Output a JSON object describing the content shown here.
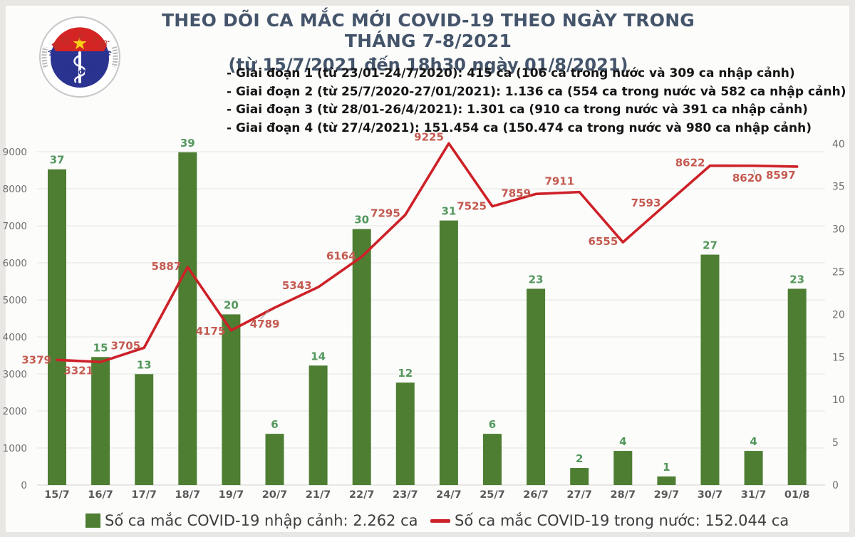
{
  "header": {
    "title_line1": "THEO DÕI CA MẮC MỚI COVID-19 THEO NGÀY TRONG THÁNG 7-8/2021",
    "title_line2": "(từ 15/7/2021 đến 18h30 ngày 01/8/2021)",
    "bullets": [
      "- Giai đoạn 1 (từ 23/01-24/7/2020): 415 ca (106 ca trong nước và 309 ca nhập cảnh)",
      "- Giai đoạn 2 (từ 25/7/2020-27/01/2021): 1.136 ca (554 ca trong nước và 582 ca nhập cảnh)",
      "- Giai đoạn 3 (từ 28/01-26/4/2021): 1.301 ca (910 ca trong nước và 391 ca nhập cảnh)",
      "- Giai đoạn 4 (từ 27/4/2021): 151.454 ca (150.474 ca trong nước và 980 ca nhập cảnh)"
    ]
  },
  "logo": {
    "top_text": "BỘ Y TẾ",
    "bottom_text": "MINISTRY OF HEALTH"
  },
  "legend": {
    "items": [
      {
        "label": "Số ca mắc COVID-19 nhập cảnh: 2.262 ca",
        "swatch": "bar",
        "color": "#4e7e32"
      },
      {
        "label": "Số ca mắc COVID-19 trong nước: 152.044 ca",
        "swatch": "line",
        "color": "#cd2128"
      }
    ]
  },
  "chart_data": {
    "type": "bar+line combo",
    "categories": [
      "15/7",
      "16/7",
      "17/7",
      "18/7",
      "19/7",
      "20/7",
      "21/7",
      "22/7",
      "23/7",
      "24/7",
      "25/7",
      "26/7",
      "27/7",
      "28/7",
      "29/7",
      "30/7",
      "31/7",
      "01/8"
    ],
    "series": [
      {
        "name": "Số ca mắc COVID-19 nhập cảnh: 2.262 ca",
        "type": "bar",
        "axis": "right",
        "color": "#4e7e32",
        "label_color": "#53975c",
        "values": [
          37,
          15,
          13,
          39,
          20,
          6,
          14,
          30,
          12,
          31,
          6,
          23,
          2,
          4,
          1,
          27,
          4,
          23
        ]
      },
      {
        "name": "Số ca mắc COVID-19 trong nước: 152.044 ca",
        "type": "line",
        "axis": "left",
        "color": "#cd2128",
        "label_color": "#c45a50",
        "values": [
          3379,
          3321,
          3705,
          5887,
          4175,
          4789,
          5343,
          6164,
          7295,
          9225,
          7525,
          7859,
          7911,
          6555,
          7593,
          8622,
          8620,
          8597
        ]
      }
    ],
    "left_axis": {
      "min": 0,
      "max": 9000,
      "step": 1000
    },
    "right_axis": {
      "min": 0,
      "max": 40,
      "step": 5
    },
    "grid": true,
    "legend_position": "bottom"
  }
}
